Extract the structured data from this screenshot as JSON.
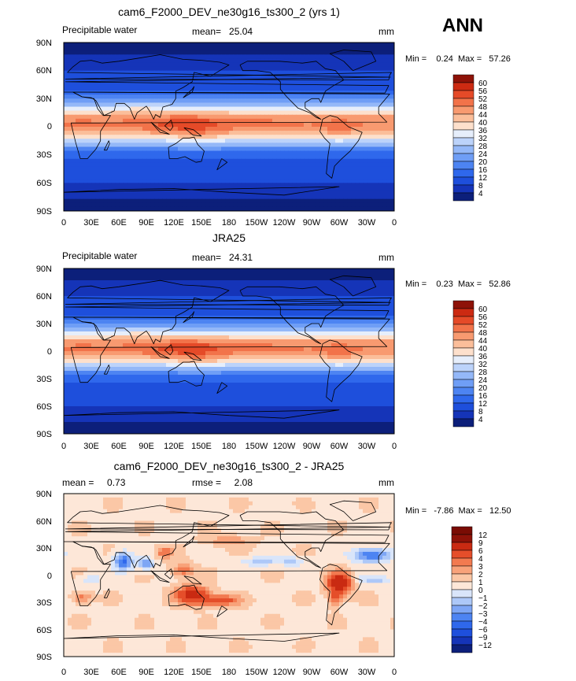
{
  "season": "ANN",
  "chart_data": [
    {
      "type": "heatmap",
      "title": "cam6_F2000_DEV_ne30g16_ts300_2 (yrs 1)",
      "field_label": "Precipitable water",
      "stat_text": "mean=   25.04",
      "units": "mm",
      "minmax_text": "Min =    0.24  Max =   57.26",
      "x_ticks": [
        "0",
        "30E",
        "60E",
        "90E",
        "120E",
        "150E",
        "180",
        "150W",
        "120W",
        "90W",
        "60W",
        "30W",
        "0"
      ],
      "y_ticks": [
        "90N",
        "60N",
        "30N",
        "0",
        "30S",
        "60S",
        "90S"
      ],
      "xlim": [
        0,
        360
      ],
      "ylim": [
        -90,
        90
      ],
      "colorbar_levels": [
        "60",
        "56",
        "52",
        "48",
        "44",
        "40",
        "36",
        "32",
        "28",
        "24",
        "20",
        "16",
        "12",
        "8",
        "4"
      ],
      "summary": {
        "mean": 25.04,
        "min": 0.24,
        "max": 57.26
      }
    },
    {
      "type": "heatmap",
      "title": "JRA25",
      "field_label": "Precipitable water",
      "stat_text": "mean=   24.31",
      "units": "mm",
      "minmax_text": "Min =    0.23  Max =   52.86",
      "x_ticks": [
        "0",
        "30E",
        "60E",
        "90E",
        "120E",
        "150E",
        "180",
        "150W",
        "120W",
        "90W",
        "60W",
        "30W",
        "0"
      ],
      "y_ticks": [
        "90N",
        "60N",
        "30N",
        "0",
        "30S",
        "60S",
        "90S"
      ],
      "xlim": [
        0,
        360
      ],
      "ylim": [
        -90,
        90
      ],
      "colorbar_levels": [
        "60",
        "56",
        "52",
        "48",
        "44",
        "40",
        "36",
        "32",
        "28",
        "24",
        "20",
        "16",
        "12",
        "8",
        "4"
      ],
      "summary": {
        "mean": 24.31,
        "min": 0.23,
        "max": 52.86
      }
    },
    {
      "type": "heatmap",
      "title": "cam6_F2000_DEV_ne30g16_ts300_2 - JRA25",
      "stat_text": "mean =     0.73",
      "rmse_text": "rmse =     2.08",
      "units": "mm",
      "minmax_text": "Min =   -7.86  Max =   12.50",
      "x_ticks": [
        "0",
        "30E",
        "60E",
        "90E",
        "120E",
        "150E",
        "180",
        "150W",
        "120W",
        "90W",
        "60W",
        "30W",
        "0"
      ],
      "y_ticks": [
        "90N",
        "60N",
        "30N",
        "0",
        "30S",
        "60S",
        "90S"
      ],
      "xlim": [
        0,
        360
      ],
      "ylim": [
        -90,
        90
      ],
      "colorbar_levels": [
        "12",
        "9",
        "6",
        "4",
        "3",
        "2",
        "1",
        "0",
        "−1",
        "−2",
        "−3",
        "−4",
        "−6",
        "−9",
        "−12"
      ],
      "summary": {
        "mean": 0.73,
        "rmse": 2.08,
        "min": -7.86,
        "max": 12.5
      }
    }
  ],
  "colors": {
    "full_scale": [
      "#0c1f7a",
      "#1534b8",
      "#1e4fdc",
      "#2f68ec",
      "#4d84f2",
      "#6f9ef6",
      "#94b8f8",
      "#bcd3fa",
      "#e6eefb",
      "#fde0cc",
      "#fbbe9a",
      "#f89a70",
      "#f2734a",
      "#e54a28",
      "#cc2a12",
      "#8e1208"
    ],
    "diff_scale": [
      "#0c1f7a",
      "#1534b8",
      "#1e4fdc",
      "#2f68ec",
      "#4d84f2",
      "#7ea6f5",
      "#adc8f8",
      "#d9e5fa",
      "#fde7d8",
      "#fbc7a6",
      "#f8a27a",
      "#f27a50",
      "#e54e2a",
      "#c92a12",
      "#8e1208",
      "#7a0c04"
    ],
    "coast": "#000000"
  }
}
